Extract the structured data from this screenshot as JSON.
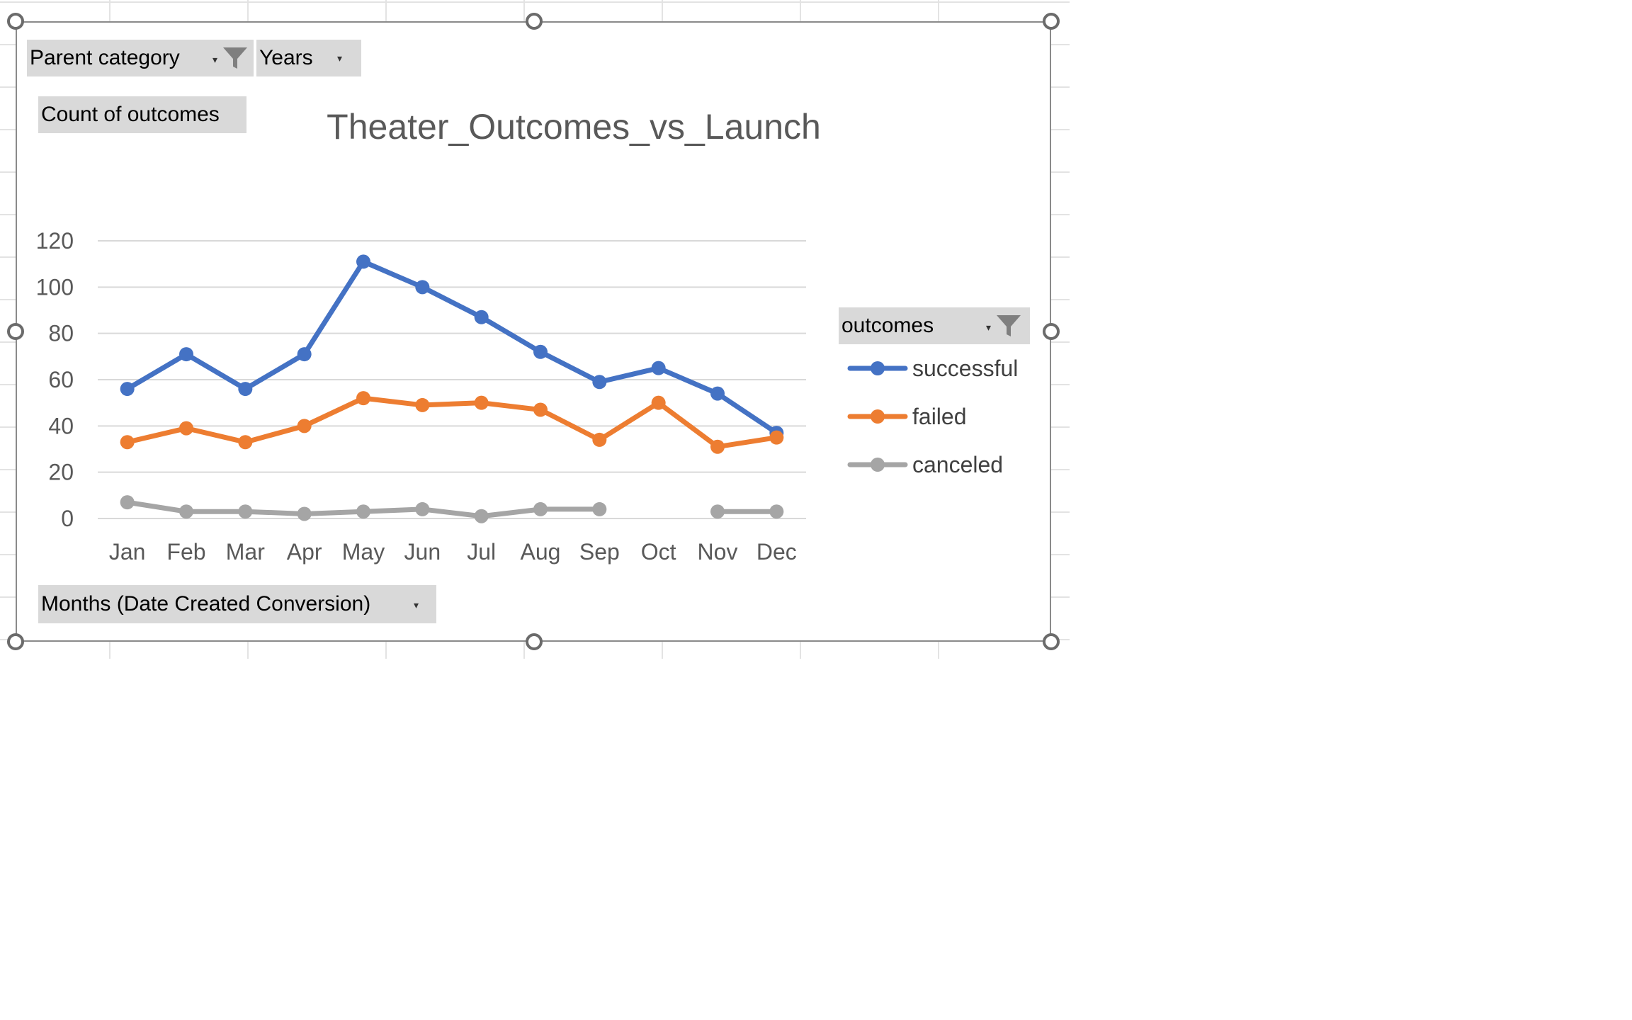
{
  "chart_data": {
    "type": "line",
    "title": "Theater_Outcomes_vs_Launch",
    "categories": [
      "Jan",
      "Feb",
      "Mar",
      "Apr",
      "May",
      "Jun",
      "Jul",
      "Aug",
      "Sep",
      "Oct",
      "Nov",
      "Dec"
    ],
    "series": [
      {
        "name": "successful",
        "color": "#4472C4",
        "values": [
          56,
          71,
          56,
          71,
          111,
          100,
          87,
          72,
          59,
          65,
          54,
          37
        ]
      },
      {
        "name": "failed",
        "color": "#ED7D31",
        "values": [
          33,
          39,
          33,
          40,
          52,
          49,
          50,
          47,
          34,
          50,
          31,
          35
        ]
      },
      {
        "name": "canceled",
        "color": "#A5A5A5",
        "values": [
          7,
          3,
          3,
          2,
          3,
          4,
          1,
          4,
          4,
          null,
          3,
          3
        ]
      }
    ],
    "y_ticks": [
      "0",
      "20",
      "40",
      "60",
      "80",
      "100",
      "120"
    ],
    "ylim": [
      0,
      120
    ],
    "grid": "horizontal",
    "legend_position": "right"
  },
  "pivot": {
    "filter_parent_category": "Parent category",
    "filter_years": "Years",
    "values_field": "Count of outcomes",
    "legend_field": "outcomes",
    "axis_field": "Months (Date Created Conversion)"
  },
  "icons": {
    "dropdown": "dropdown-arrow-icon",
    "filter": "filter-funnel-icon",
    "resize": "resize-handle-icon"
  }
}
